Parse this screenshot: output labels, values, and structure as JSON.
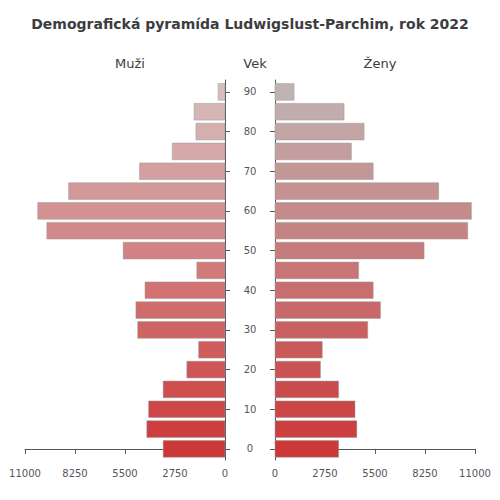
{
  "chart_data": {
    "type": "bar",
    "orientation": "horizontal",
    "title": "Demografická pyramída Ludwigslust-Parchim, rok 2022",
    "ylabel": "Vek",
    "y": [
      0,
      5,
      10,
      15,
      20,
      25,
      30,
      35,
      40,
      45,
      50,
      55,
      60,
      65,
      70,
      75,
      80,
      85,
      90
    ],
    "series": [
      {
        "name": "Muži",
        "values": [
          3400,
          4300,
          4200,
          3400,
          2100,
          1450,
          4800,
          4900,
          4400,
          1550,
          5600,
          9800,
          10300,
          8600,
          4700,
          2900,
          1600,
          1700,
          380
        ],
        "colors": [
          "#cc3838",
          "#cd3f3f",
          "#cd4747",
          "#ce4e4e",
          "#ce5656",
          "#cf5d5d",
          "#cf6464",
          "#d06c6c",
          "#d17373",
          "#d17a7a",
          "#d28282",
          "#d28989",
          "#d39191",
          "#d39898",
          "#d49f9f",
          "#d5a7a7",
          "#d5aeae",
          "#d6b5b5",
          "#d6bdbd"
        ]
      },
      {
        "name": "Ženy",
        "values": [
          3500,
          4500,
          4400,
          3500,
          2500,
          2600,
          5100,
          5800,
          5400,
          4600,
          8200,
          10600,
          10800,
          9000,
          5400,
          4200,
          4900,
          3800,
          1050
        ],
        "colors": [
          "#cc3838",
          "#cb3f3f",
          "#cb4646",
          "#ca4d4d",
          "#ca5353",
          "#c95a5a",
          "#c96161",
          "#c86868",
          "#c76f6f",
          "#c77575",
          "#c67c7c",
          "#c68383",
          "#c58a8a",
          "#c59191",
          "#c49797",
          "#c49e9e",
          "#c3a5a5",
          "#c2acac",
          "#c2b3b3"
        ]
      }
    ],
    "xlim": [
      0,
      11000
    ],
    "xticks": [
      0,
      2750,
      5500,
      8250,
      11000
    ],
    "ylim": [
      -2.8,
      93.0
    ],
    "yticks": [
      0,
      10,
      20,
      30,
      40,
      50,
      60,
      70,
      80,
      90
    ],
    "grid": false
  }
}
